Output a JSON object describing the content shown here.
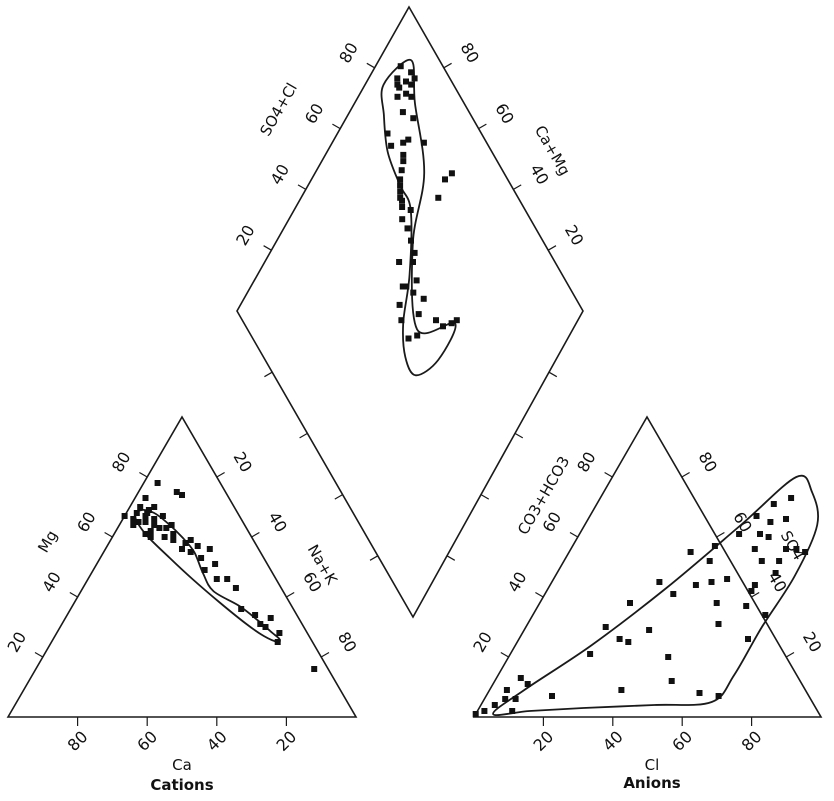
{
  "chart_data": {
    "type": "scatter",
    "colors": {
      "ink": "#111111",
      "background": "#ffffff"
    },
    "cation_triangle": {
      "axis_labels": {
        "left": "Mg",
        "right": "Na+K",
        "bottom": "Ca"
      },
      "caption": "Cations",
      "left_ticks": [
        "20",
        "40",
        "60",
        "80"
      ],
      "right_ticks": [
        "20",
        "40",
        "60",
        "80"
      ],
      "bottom_ticks": [
        "80",
        "60",
        "40",
        "20"
      ],
      "envelope": [
        [
          67,
          30
        ],
        [
          69,
          27
        ],
        [
          68,
          24
        ],
        [
          65,
          22
        ],
        [
          60,
          20
        ],
        [
          55,
          19
        ],
        [
          48,
          20
        ],
        [
          42,
          20
        ],
        [
          37,
          15
        ],
        [
          32,
          12
        ],
        [
          28,
          10
        ],
        [
          26,
          9
        ],
        [
          25,
          10
        ],
        [
          27,
          13
        ],
        [
          31,
          16
        ],
        [
          38,
          20
        ],
        [
          46,
          24
        ],
        [
          53,
          27
        ],
        [
          61,
          30
        ]
      ],
      "points": [
        [
          73,
          24
        ],
        [
          70,
          23
        ],
        [
          69,
          25
        ],
        [
          70,
          27
        ],
        [
          68,
          29
        ],
        [
          67,
          27
        ],
        [
          65,
          28
        ],
        [
          68,
          26
        ],
        [
          66,
          25
        ],
        [
          63,
          25
        ],
        [
          62,
          28
        ],
        [
          65,
          30
        ],
        [
          64,
          32
        ],
        [
          66,
          31
        ],
        [
          61,
          30
        ],
        [
          60,
          29
        ],
        [
          67,
          33
        ],
        [
          64,
          26
        ],
        [
          60,
          25
        ],
        [
          63,
          23
        ],
        [
          67,
          22
        ],
        [
          64,
          21
        ],
        [
          59,
          23
        ],
        [
          61,
          22
        ],
        [
          56,
          22
        ],
        [
          58,
          20
        ],
        [
          55,
          20
        ],
        [
          57,
          17
        ],
        [
          53,
          18
        ],
        [
          59,
          18
        ],
        [
          56,
          14
        ],
        [
          51,
          15
        ],
        [
          46,
          14
        ],
        [
          49,
          19
        ],
        [
          43,
          13
        ],
        [
          34,
          12
        ],
        [
          31,
          12
        ],
        [
          30,
          11
        ],
        [
          28,
          8
        ],
        [
          33,
          8
        ],
        [
          25,
          10
        ],
        [
          36,
          15
        ],
        [
          46,
          17
        ],
        [
          78,
          18
        ],
        [
          75,
          14
        ],
        [
          74,
          13
        ],
        [
          16,
          4
        ]
      ]
    },
    "anion_triangle": {
      "axis_labels": {
        "left": "CO3+HCO3",
        "right": "SO4",
        "bottom": "Cl"
      },
      "caption": "Anions",
      "left_ticks": [
        "20",
        "40",
        "60",
        "80"
      ],
      "right_ticks": [
        "20",
        "40",
        "60",
        "80"
      ],
      "bottom_ticks": [
        "20",
        "40",
        "60",
        "80"
      ],
      "envelope": [
        [
          5,
          1
        ],
        [
          15,
          2
        ],
        [
          30,
          3
        ],
        [
          50,
          4
        ],
        [
          66,
          5
        ],
        [
          68,
          14
        ],
        [
          68,
          30
        ],
        [
          69,
          47
        ],
        [
          67,
          64
        ],
        [
          60,
          75
        ],
        [
          53,
          80
        ],
        [
          45,
          64
        ],
        [
          34,
          43
        ],
        [
          22,
          24
        ],
        [
          10,
          9
        ]
      ],
      "points": [
        [
          0,
          1
        ],
        [
          2,
          2
        ],
        [
          4,
          4
        ],
        [
          6,
          6
        ],
        [
          9,
          6
        ],
        [
          10,
          2
        ],
        [
          10,
          11
        ],
        [
          19,
          7
        ],
        [
          23,
          21
        ],
        [
          23,
          30
        ],
        [
          26,
          38
        ],
        [
          31,
          45
        ],
        [
          35,
          55
        ],
        [
          42,
          52
        ],
        [
          41,
          57
        ],
        [
          46,
          61
        ],
        [
          48,
          67
        ],
        [
          53,
          65
        ],
        [
          55,
          73
        ],
        [
          51,
          71
        ],
        [
          57,
          66
        ],
        [
          55,
          60
        ],
        [
          53,
          56
        ],
        [
          52,
          61
        ],
        [
          57,
          52
        ],
        [
          59,
          42
        ],
        [
          51,
          38
        ],
        [
          50,
          46
        ],
        [
          46,
          45
        ],
        [
          42,
          44
        ],
        [
          37,
          41
        ],
        [
          36,
          29
        ],
        [
          32,
          25
        ],
        [
          29,
          26
        ],
        [
          55,
          31
        ],
        [
          60,
          37
        ],
        [
          67,
          34
        ],
        [
          66,
          26
        ],
        [
          46,
          20
        ],
        [
          38,
          9
        ],
        [
          51,
          12
        ],
        [
          61,
          8
        ],
        [
          67,
          7
        ],
        [
          62,
          56
        ],
        [
          65,
          56
        ],
        [
          68,
          55
        ],
        [
          63,
          48
        ],
        [
          59,
          44
        ],
        [
          62,
          52
        ],
        [
          7,
          13
        ],
        [
          5,
          9
        ]
      ]
    },
    "diamond": {
      "axis_labels": {
        "upper_left": "SO4+Cl",
        "upper_right": "Ca+Mg"
      },
      "upper_left_ticks": [
        "20",
        "40",
        "60",
        "80"
      ],
      "upper_right_ticks": [
        "20",
        "40",
        "60",
        "80"
      ],
      "envelope": [
        [
          35,
          61
        ],
        [
          45,
          49
        ],
        [
          60,
          62
        ],
        [
          68,
          77
        ],
        [
          82,
          86
        ],
        [
          90,
          92
        ],
        [
          94,
          80
        ],
        [
          89,
          75
        ],
        [
          82,
          70
        ],
        [
          73,
          68
        ],
        [
          66,
          67
        ],
        [
          56,
          56
        ],
        [
          50,
          46
        ],
        [
          44,
          41
        ],
        [
          38,
          41
        ],
        [
          34,
          50
        ]
      ],
      "points": [
        [
          35,
          62
        ],
        [
          36,
          60
        ],
        [
          38,
          57
        ],
        [
          41,
          56
        ],
        [
          46,
          45
        ],
        [
          44,
          48
        ],
        [
          47,
          52
        ],
        [
          48,
          56
        ],
        [
          51,
          46
        ],
        [
          54,
          48
        ],
        [
          52,
          54
        ],
        [
          56,
          52
        ],
        [
          53,
          57
        ],
        [
          55,
          53
        ],
        [
          57,
          59
        ],
        [
          58,
          61
        ],
        [
          61,
          62
        ],
        [
          64,
          63
        ],
        [
          61,
          55
        ],
        [
          66,
          67
        ],
        [
          67,
          63
        ],
        [
          69,
          65
        ],
        [
          70,
          66
        ],
        [
          71,
          66
        ],
        [
          72,
          67
        ],
        [
          73,
          68
        ],
        [
          74,
          69
        ],
        [
          75,
          71
        ],
        [
          77,
          74
        ],
        [
          79,
          76
        ],
        [
          80,
          83
        ],
        [
          84,
          81
        ],
        [
          86,
          90
        ],
        [
          88,
          87
        ],
        [
          88,
          82
        ],
        [
          90,
          84
        ],
        [
          91,
          85
        ],
        [
          92,
          88
        ],
        [
          86,
          85
        ],
        [
          82,
          72
        ],
        [
          85,
          73
        ],
        [
          76,
          73
        ],
        [
          60,
          85
        ],
        [
          60,
          77
        ],
        [
          61,
          82
        ],
        [
          73,
          82
        ],
        [
          78,
          78
        ],
        [
          86,
          88
        ],
        [
          88,
          90
        ],
        [
          84,
          86
        ],
        [
          89,
          84
        ]
      ]
    }
  }
}
